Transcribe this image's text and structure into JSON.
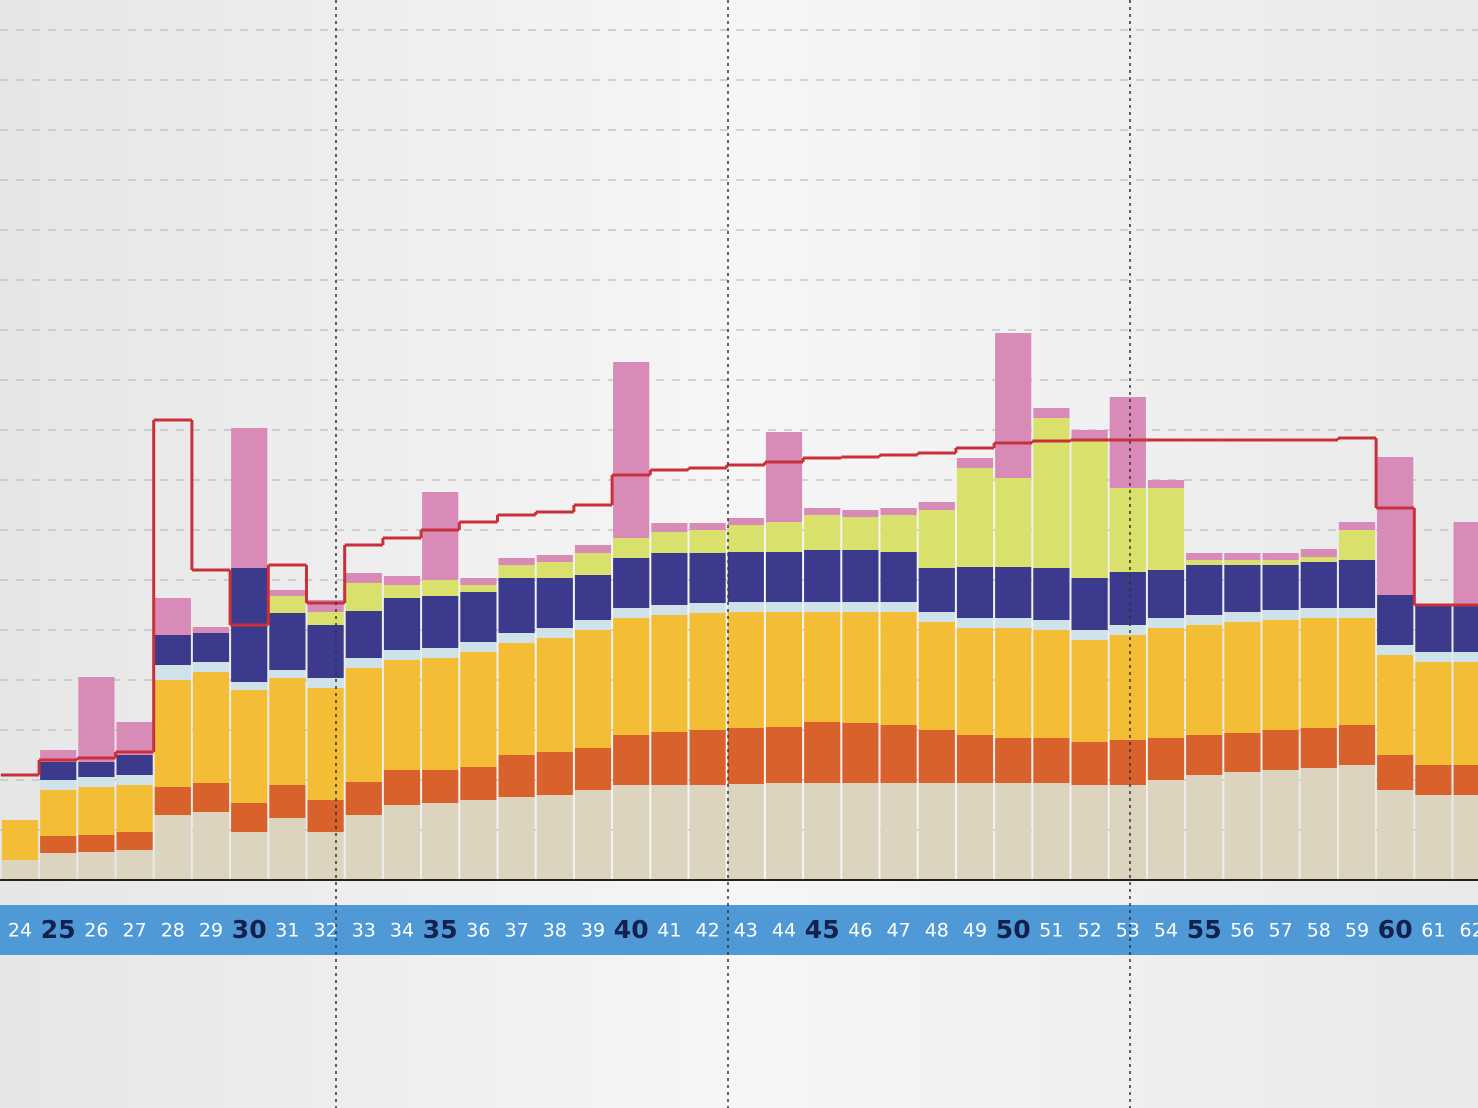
{
  "chart_data": {
    "type": "bar",
    "stacked": true,
    "categories": [
      "24",
      "25",
      "26",
      "27",
      "28",
      "29",
      "30",
      "31",
      "32",
      "33",
      "34",
      "35",
      "36",
      "37",
      "38",
      "39",
      "40",
      "41",
      "42",
      "43",
      "44",
      "45",
      "46",
      "47",
      "48",
      "49",
      "50",
      "51",
      "52",
      "53",
      "54",
      "55",
      "56",
      "57",
      "58",
      "59",
      "60",
      "61",
      "62"
    ],
    "series": [
      {
        "color": "#ddd4bf",
        "values": [
          2,
          2.7,
          2.8,
          3,
          6.5,
          6.8,
          4.8,
          6.2,
          4.8,
          6.5,
          7.5,
          7.7,
          8,
          8.3,
          8.5,
          9,
          9.5,
          9.5,
          9.5,
          9.6,
          9.7,
          9.7,
          9.7,
          9.7,
          9.7,
          9.7,
          9.7,
          9.7,
          9.5,
          9.5,
          10,
          10.5,
          10.8,
          11,
          11.2,
          11.5,
          9,
          8.5,
          8.5
        ]
      },
      {
        "color": "#d9612b",
        "values": [
          0,
          1.7,
          1.7,
          1.8,
          2.8,
          2.9,
          2.9,
          3.3,
          3.2,
          3.3,
          3.5,
          3.3,
          3.3,
          4.2,
          4.3,
          4.2,
          5,
          5.3,
          5.5,
          5.6,
          5.6,
          6.1,
          6,
          5.8,
          5.3,
          4.8,
          4.5,
          4.5,
          4.3,
          4.5,
          4.2,
          4,
          3.9,
          4,
          4,
          4,
          3.5,
          3,
          3
        ]
      },
      {
        "color": "#f3bd35",
        "values": [
          4,
          4.6,
          4.8,
          4.7,
          10.7,
          11.1,
          11.3,
          10.7,
          11.2,
          11.4,
          11,
          11.2,
          11.5,
          11.2,
          11.4,
          11.8,
          11.7,
          11.7,
          11.7,
          11.6,
          11.5,
          11,
          11.1,
          11.3,
          10.8,
          10.7,
          11,
          10.8,
          10.2,
          10.5,
          11,
          11,
          11.1,
          11,
          11,
          10.7,
          10,
          10.3,
          10.3
        ]
      },
      {
        "color": "#cfe2ea",
        "values": [
          0,
          1,
          1,
          1,
          1.5,
          1,
          0.8,
          0.8,
          1,
          1,
          1,
          1,
          1,
          1,
          1,
          1,
          1,
          1,
          1,
          1,
          1,
          1,
          1,
          1,
          1,
          1,
          1,
          1,
          1,
          1,
          1,
          1,
          1,
          1,
          1,
          1,
          1,
          1,
          1
        ]
      },
      {
        "color": "#3b3a8d",
        "values": [
          0,
          1.8,
          1.5,
          2,
          3,
          2.9,
          11.4,
          5.7,
          5.3,
          4.7,
          5.2,
          5.2,
          5,
          5.5,
          5,
          4.5,
          5,
          5.2,
          5,
          5,
          5,
          5.2,
          5.2,
          5,
          4.4,
          5.1,
          5.1,
          5.2,
          5.2,
          5.3,
          4.8,
          5,
          4.7,
          4.5,
          4.6,
          4.8,
          5,
          4.7,
          4.7
        ]
      },
      {
        "color": "#d9e06b",
        "values": [
          0,
          0,
          0,
          0,
          0,
          0,
          0,
          1.7,
          1.3,
          2.8,
          1.3,
          1.6,
          0.7,
          1.3,
          1.6,
          2.2,
          2,
          2.1,
          2.3,
          2.7,
          3,
          3.5,
          3.3,
          3.7,
          5.8,
          9.9,
          8.9,
          15,
          13.8,
          8.4,
          8.2,
          0.5,
          0.5,
          0.5,
          0.5,
          3,
          0,
          0,
          0
        ]
      },
      {
        "color": "#d98bb8",
        "values": [
          0,
          1.2,
          8.5,
          3.3,
          3.7,
          0.6,
          14,
          0.6,
          1.2,
          1,
          0.9,
          8.8,
          0.7,
          0.7,
          0.7,
          0.8,
          17.6,
          0.9,
          0.7,
          0.7,
          9,
          0.7,
          0.7,
          0.7,
          0.8,
          1,
          14.5,
          1,
          1,
          9.1,
          0.8,
          0.7,
          0.7,
          0.7,
          0.8,
          0.8,
          13.8,
          0,
          8.3
        ]
      },
      {
        "type": "step",
        "color": "#c8303a",
        "values": [
          10.5,
          12,
          12.2,
          12.8,
          46,
          31,
          25.5,
          31.5,
          27.7,
          33.5,
          34.2,
          35,
          35.8,
          36.5,
          36.8,
          37.5,
          40.5,
          41,
          41.2,
          41.5,
          41.8,
          42.2,
          42.3,
          42.5,
          42.7,
          43.2,
          43.7,
          43.9,
          44,
          44,
          44,
          44,
          44,
          44,
          44,
          44.2,
          37.2,
          27.5,
          27.5
        ]
      }
    ],
    "ylim": [
      0,
      88
    ],
    "ygrid": [
      5,
      10,
      15,
      20,
      25,
      30,
      35,
      40,
      45,
      50,
      55,
      60,
      65,
      70,
      75,
      80,
      85
    ]
  }
}
